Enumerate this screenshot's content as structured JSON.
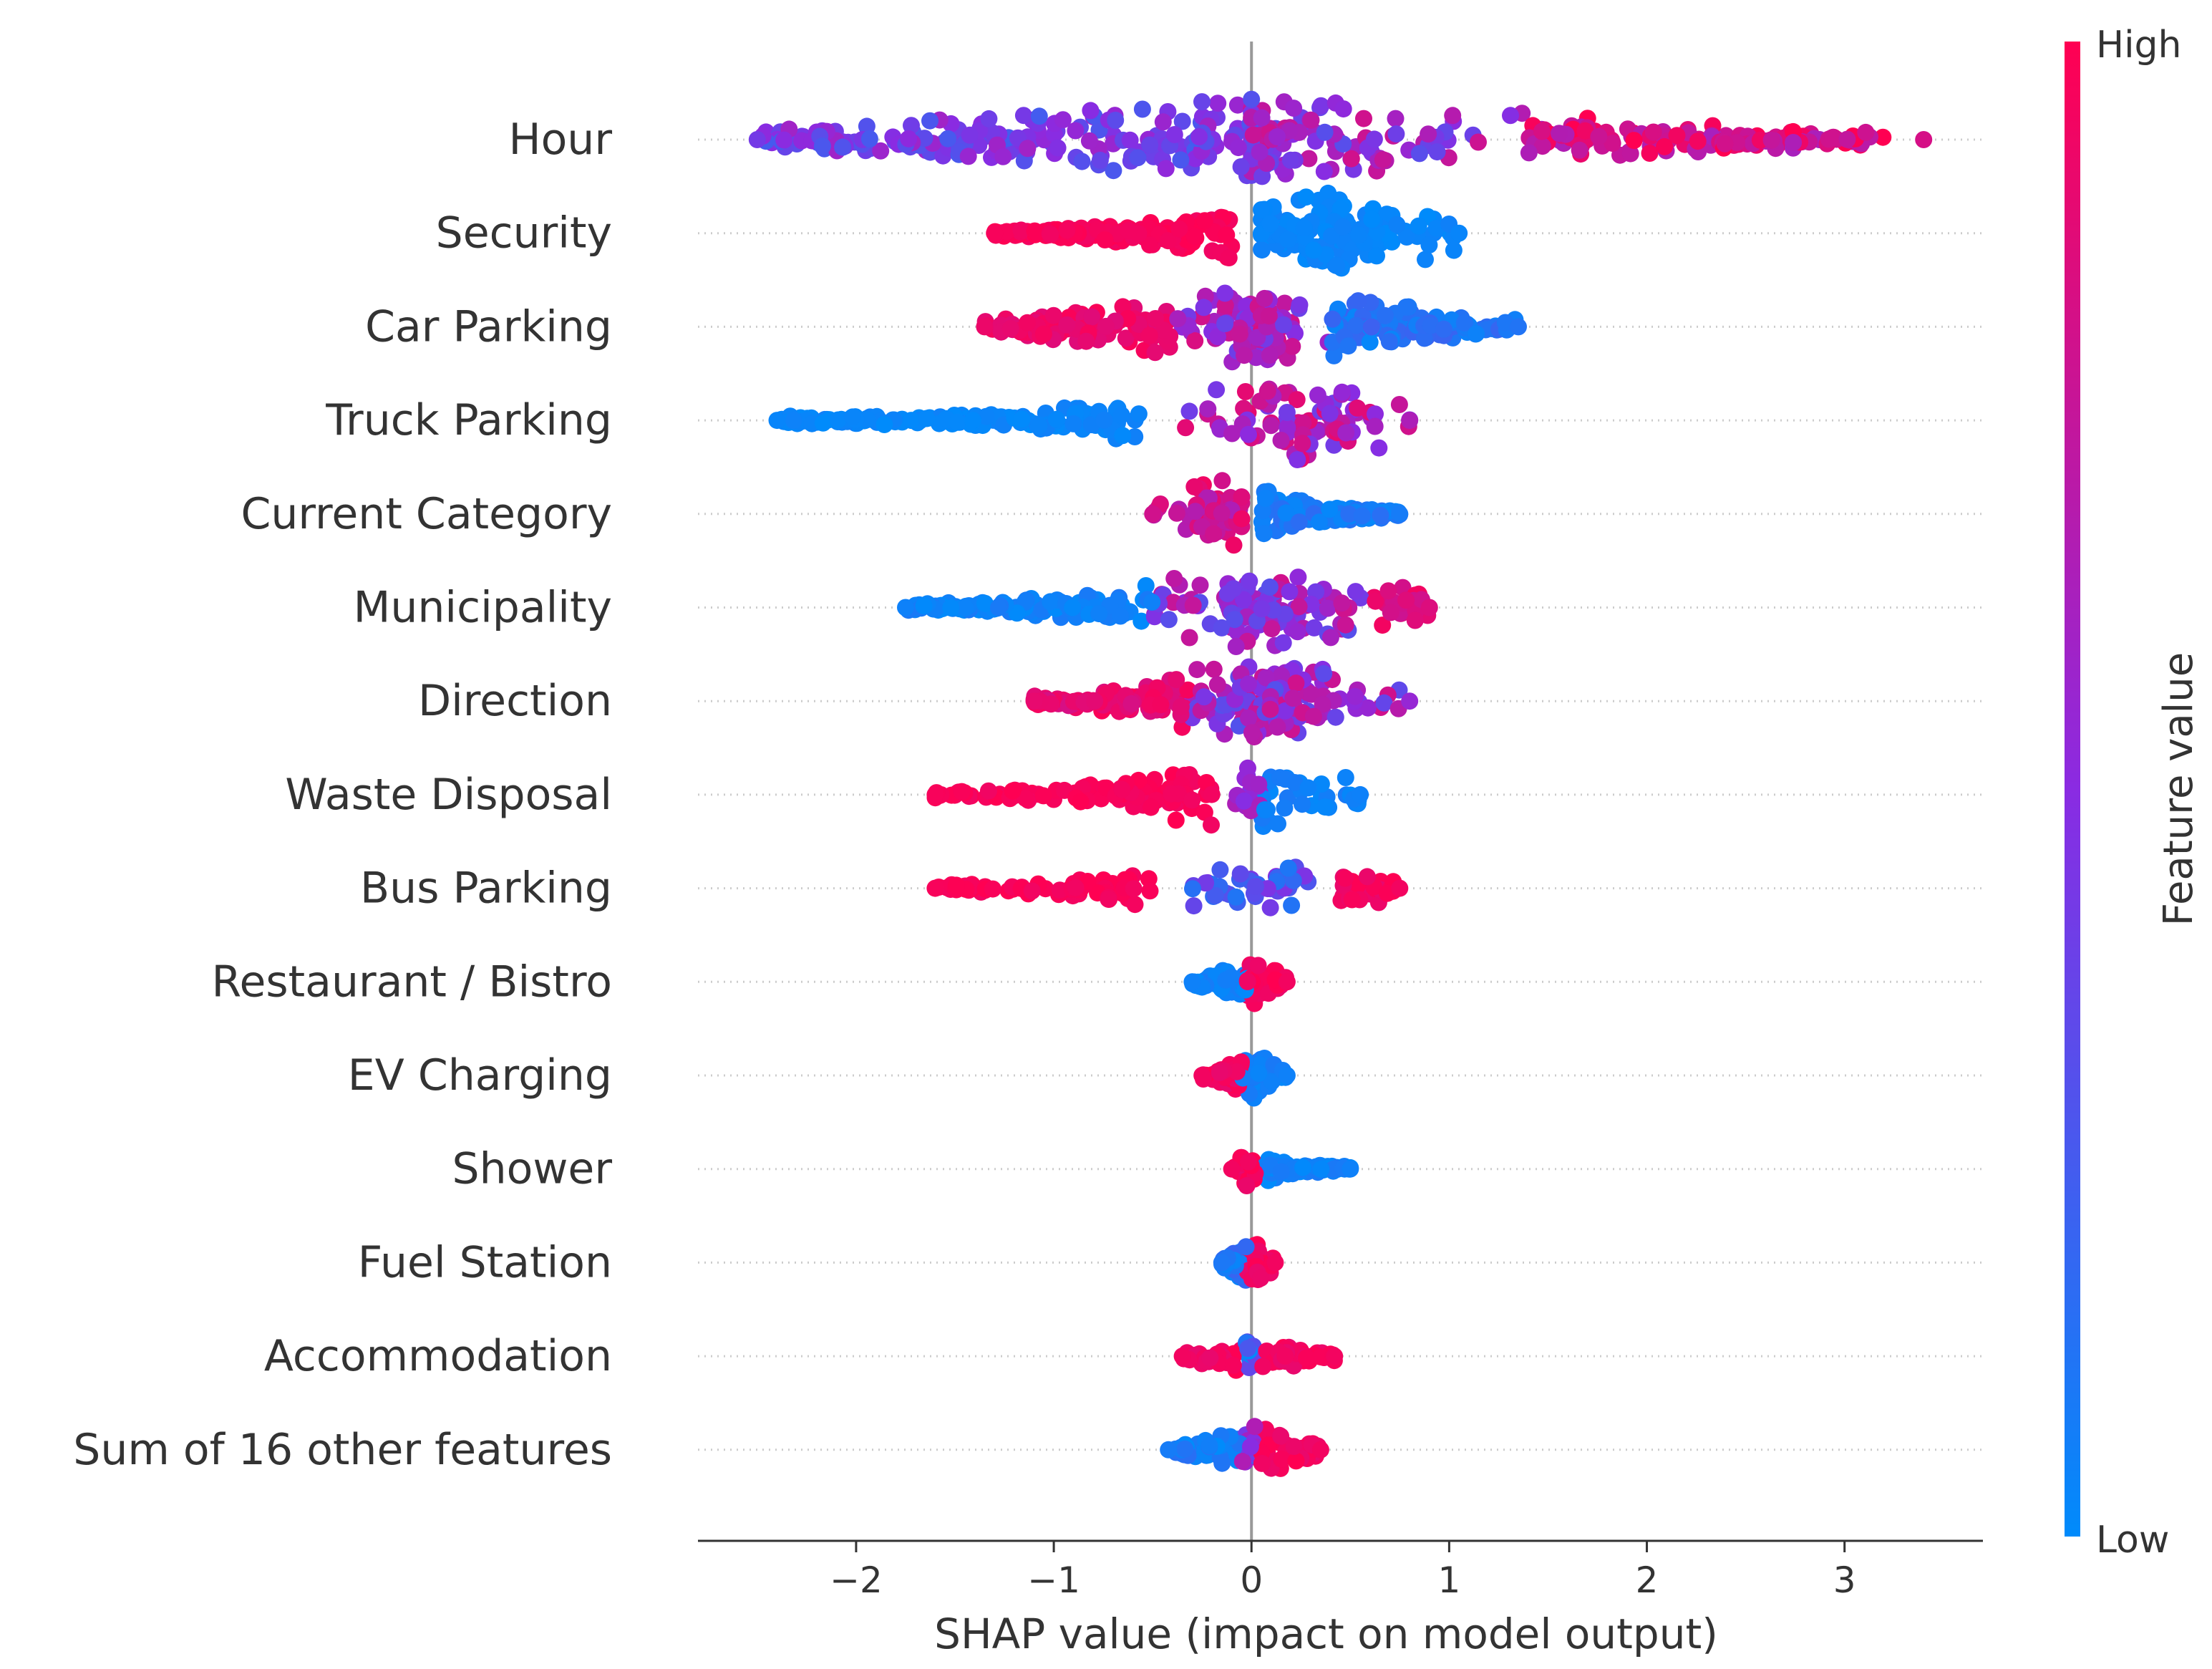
{
  "chart_data": {
    "type": "scatter",
    "subtype": "shap-beeswarm",
    "xlabel": "SHAP value (impact on model output)",
    "xlim": [
      -2.8,
      3.7
    ],
    "xticks": [
      -2,
      -1,
      0,
      1,
      2,
      3
    ],
    "xtick_labels": [
      "−2",
      "−1",
      "0",
      "1",
      "2",
      "3"
    ],
    "colorbar": {
      "label": "Feature value",
      "high_label": "High",
      "low_label": "Low",
      "low_color": "#008bfb",
      "mid_color": "#8a2be2",
      "high_color": "#ff0052"
    },
    "features": [
      {
        "name": "Hour",
        "min": -2.5,
        "max": 3.4,
        "n": 460,
        "peak": 0.16,
        "width_scale": 1.0,
        "segments": [
          [
            -2.5,
            0.0,
            0.42,
            0.18
          ],
          [
            0.0,
            1.4,
            0.55,
            0.25
          ],
          [
            1.4,
            3.2,
            0.82,
            0.2
          ]
        ]
      },
      {
        "name": "Security",
        "min": -1.3,
        "max": 1.05,
        "n": 300,
        "peak": 0.35,
        "width_scale": 1.0,
        "segments": [
          [
            -1.3,
            -0.1,
            0.97,
            0.03
          ],
          [
            0.05,
            1.05,
            0.03,
            0.03
          ]
        ]
      },
      {
        "name": "Car Parking",
        "min": -1.35,
        "max": 1.35,
        "n": 300,
        "peak": 0.0,
        "width_scale": 1.0,
        "segments": [
          [
            -1.35,
            -0.4,
            0.92,
            0.06
          ],
          [
            -0.4,
            0.4,
            0.6,
            0.25
          ],
          [
            0.4,
            1.35,
            0.12,
            0.1
          ]
        ]
      },
      {
        "name": "Truck Parking",
        "min": -2.4,
        "max": 0.8,
        "n": 230,
        "peak": 0.28,
        "width_scale": 1.0,
        "segments": [
          [
            -2.4,
            -0.55,
            0.03,
            0.03
          ],
          [
            -0.4,
            0.8,
            0.65,
            0.25
          ]
        ]
      },
      {
        "name": "Current Category",
        "min": -0.5,
        "max": 0.75,
        "n": 190,
        "peak": -0.15,
        "width_scale": 0.85,
        "segments": [
          [
            -0.5,
            -0.05,
            0.8,
            0.15
          ],
          [
            0.05,
            0.75,
            0.08,
            0.08
          ]
        ]
      },
      {
        "name": "Municipality",
        "min": -1.75,
        "max": 0.9,
        "n": 250,
        "peak": 0.05,
        "width_scale": 1.0,
        "segments": [
          [
            -1.75,
            -0.5,
            0.05,
            0.05
          ],
          [
            -0.5,
            0.6,
            0.55,
            0.25
          ],
          [
            0.6,
            0.9,
            0.85,
            0.1
          ]
        ]
      },
      {
        "name": "Direction",
        "min": -1.1,
        "max": 0.8,
        "n": 240,
        "peak": 0.05,
        "width_scale": 1.0,
        "segments": [
          [
            -1.1,
            -0.3,
            0.9,
            0.08
          ],
          [
            -0.3,
            0.8,
            0.55,
            0.25
          ]
        ]
      },
      {
        "name": "Waste Disposal",
        "min": -1.6,
        "max": 0.55,
        "n": 150,
        "peak": 0.0,
        "width_scale": 0.8,
        "segments": [
          [
            -1.6,
            -0.2,
            0.97,
            0.03
          ],
          [
            -0.1,
            0.05,
            0.55,
            0.1
          ],
          [
            0.05,
            0.55,
            0.05,
            0.05
          ]
        ]
      },
      {
        "name": "Bus Parking",
        "min": -1.6,
        "max": 0.75,
        "n": 130,
        "peak": 0.0,
        "width_scale": 0.6,
        "segments": [
          [
            -1.6,
            -0.5,
            0.97,
            0.03
          ],
          [
            -0.3,
            0.3,
            0.3,
            0.2
          ],
          [
            0.4,
            0.75,
            0.95,
            0.05
          ]
        ]
      },
      {
        "name": "Restaurant / Bistro",
        "min": -0.3,
        "max": 0.18,
        "n": 100,
        "peak": 0.0,
        "width_scale": 0.5,
        "segments": [
          [
            -0.3,
            -0.02,
            0.05,
            0.05
          ],
          [
            -0.02,
            0.18,
            0.95,
            0.05
          ]
        ]
      },
      {
        "name": "EV Charging",
        "min": -0.25,
        "max": 0.18,
        "n": 100,
        "peak": 0.0,
        "width_scale": 0.5,
        "segments": [
          [
            -0.25,
            -0.05,
            0.95,
            0.05
          ],
          [
            -0.05,
            0.18,
            0.05,
            0.05
          ]
        ]
      },
      {
        "name": "Shower",
        "min": -0.1,
        "max": 0.5,
        "n": 100,
        "peak": -0.03,
        "width_scale": 0.35,
        "segments": [
          [
            -0.1,
            0.02,
            0.95,
            0.05
          ],
          [
            0.05,
            0.5,
            0.05,
            0.05
          ]
        ]
      },
      {
        "name": "Fuel Station",
        "min": -0.15,
        "max": 0.12,
        "n": 80,
        "peak": 0.0,
        "width_scale": 0.5,
        "segments": [
          [
            -0.15,
            -0.02,
            0.1,
            0.1
          ],
          [
            -0.02,
            0.12,
            0.95,
            0.05
          ]
        ]
      },
      {
        "name": "Accommodation",
        "min": -0.35,
        "max": 0.42,
        "n": 90,
        "peak": 0.0,
        "width_scale": 0.35,
        "segments": [
          [
            -0.35,
            -0.05,
            0.95,
            0.05
          ],
          [
            -0.05,
            0.05,
            0.2,
            0.2
          ],
          [
            0.05,
            0.42,
            0.95,
            0.05
          ]
        ]
      },
      {
        "name": "Sum of 16 other features",
        "min": -0.42,
        "max": 0.35,
        "n": 120,
        "peak": 0.0,
        "width_scale": 0.6,
        "segments": [
          [
            -0.42,
            -0.05,
            0.08,
            0.08
          ],
          [
            -0.05,
            0.05,
            0.4,
            0.3
          ],
          [
            0.05,
            0.35,
            0.95,
            0.05
          ]
        ]
      }
    ]
  }
}
